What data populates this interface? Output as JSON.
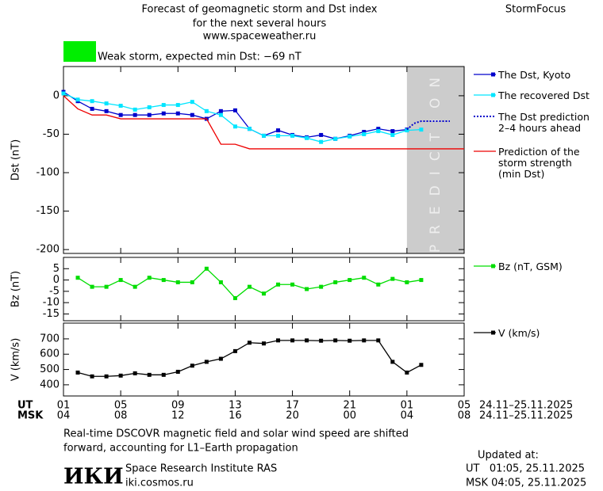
{
  "header": {
    "title_lines": [
      "Forecast of geomagnetic storm and Dst index",
      "for the next several hours",
      "www.spaceweather.ru"
    ],
    "brand": "StormFocus"
  },
  "status": {
    "color": "#00ee00",
    "text": "Weak storm, expected min Dst: −69 nT"
  },
  "chart_data": [
    {
      "type": "line",
      "ylabel": "Dst (nT)",
      "xlim": [
        0,
        28
      ],
      "xticks": [
        0,
        4,
        8,
        12,
        16,
        20,
        24,
        28
      ],
      "ylim": [
        -205,
        38
      ],
      "yticks": [
        0,
        -50,
        -100,
        -150,
        -200
      ],
      "prediction_span": [
        24,
        28
      ],
      "prediction_label": "PREDICTION",
      "series": [
        {
          "name": "The Dst, Kyoto",
          "color": "#0000cc",
          "marker": "square",
          "x": [
            0,
            1,
            2,
            3,
            4,
            5,
            6,
            7,
            8,
            9,
            10,
            11,
            12,
            13,
            14,
            15,
            16,
            17,
            18,
            19,
            20,
            21,
            22,
            23,
            24
          ],
          "values": [
            5,
            -7,
            -17,
            -20,
            -25,
            -25,
            -25,
            -23,
            -23,
            -25,
            -30,
            -20,
            -19,
            -43,
            -52,
            -45,
            -51,
            -54,
            -51,
            -56,
            -52,
            -47,
            -43,
            -46,
            -44
          ]
        },
        {
          "name": "The recovered Dst",
          "color": "#00e5ff",
          "marker": "square",
          "x": [
            0,
            1,
            2,
            3,
            4,
            5,
            6,
            7,
            8,
            9,
            10,
            11,
            12,
            13,
            14,
            15,
            16,
            17,
            18,
            19,
            20,
            21,
            22,
            23,
            24,
            25
          ],
          "values": [
            3,
            -5,
            -7,
            -10,
            -13,
            -18,
            -15,
            -12,
            -12,
            -8,
            -20,
            -25,
            -40,
            -43,
            -52,
            -52,
            -52,
            -55,
            -60,
            -56,
            -53,
            -50,
            -46,
            -51,
            -45,
            -44
          ]
        },
        {
          "name": "The Dst prediction\n2–4 hours ahead",
          "color": "#0000cc",
          "linestyle": "dotted",
          "x": [
            24,
            24.5,
            25,
            26,
            27
          ],
          "values": [
            -44,
            -36,
            -33,
            -33,
            -33
          ]
        },
        {
          "name": "Prediction of the\nstorm strength\n(min Dst)",
          "color": "#ee0000",
          "x": [
            0,
            1,
            2,
            3,
            4,
            10,
            11,
            12,
            13,
            28
          ],
          "values": [
            0,
            -17,
            -25,
            -25,
            -30,
            -30,
            -63,
            -63,
            -69,
            -69
          ]
        }
      ]
    },
    {
      "type": "line",
      "ylabel": "Bz (nT)",
      "xlim": [
        0,
        28
      ],
      "xticks": [
        0,
        4,
        8,
        12,
        16,
        20,
        24,
        28
      ],
      "ylim": [
        -18,
        10
      ],
      "yticks": [
        5,
        0,
        -5,
        -10,
        -15
      ],
      "series": [
        {
          "name": "Bz (nT, GSM)",
          "color": "#00dd00",
          "marker": "square",
          "x": [
            1,
            2,
            3,
            4,
            5,
            6,
            7,
            8,
            9,
            10,
            11,
            12,
            13,
            14,
            15,
            16,
            17,
            18,
            19,
            20,
            21,
            22,
            23,
            24,
            25
          ],
          "values": [
            1,
            -3,
            -3,
            0,
            -3,
            1,
            0,
            -1,
            -1,
            5,
            -1,
            -8,
            -3,
            -6,
            -2,
            -2,
            -4,
            -3,
            -1,
            0,
            1,
            -2,
            0.5,
            -1,
            0
          ]
        }
      ]
    },
    {
      "type": "line",
      "ylabel": "V (km/s)",
      "xlim": [
        0,
        28
      ],
      "ylim": [
        327,
        803
      ],
      "yticks": [
        700,
        600,
        500,
        400
      ],
      "xticks": [
        {
          "value": 0,
          "label": "01"
        },
        {
          "value": 4,
          "label": "05"
        },
        {
          "value": 8,
          "label": "09"
        },
        {
          "value": 12,
          "label": "13"
        },
        {
          "value": 16,
          "label": "17"
        },
        {
          "value": 20,
          "label": "21"
        },
        {
          "value": 24,
          "label": "01"
        },
        {
          "value": 28,
          "label": "05"
        }
      ],
      "msk_tick_labels": [
        "04",
        "08",
        "12",
        "16",
        "20",
        "00",
        "04",
        "08"
      ],
      "ut_label": "UT",
      "msk_label": "MSK",
      "ut_dates": "24.11–25.11.2025",
      "msk_dates": "24.11–25.11.2025",
      "series": [
        {
          "name": "V (km/s)",
          "color": "#000000",
          "marker": "square",
          "x": [
            1,
            2,
            3,
            4,
            5,
            6,
            7,
            8,
            9,
            10,
            11,
            12,
            13,
            14,
            15,
            16,
            17,
            18,
            19,
            20,
            21,
            22,
            23,
            24,
            25
          ],
          "values": [
            480,
            455,
            455,
            460,
            475,
            465,
            465,
            485,
            525,
            550,
            570,
            620,
            675,
            670,
            690,
            690,
            690,
            688,
            690,
            688,
            690,
            690,
            550,
            480,
            530
          ]
        }
      ]
    }
  ],
  "footer": {
    "note_lines": [
      "Real-time DSCOVR magnetic field and solar wind speed are shifted",
      "forward, accounting for L1–Earth propagation"
    ],
    "logo": "ИКИ",
    "institute": "Space Research Institute RAS",
    "site": "iki.cosmos.ru",
    "updated_lines": [
      "Updated at:",
      "UT   01:05, 25.11.2025",
      "MSK 04:05, 25.11.2025"
    ]
  }
}
